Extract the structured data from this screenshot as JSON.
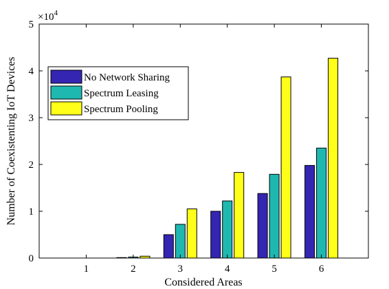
{
  "chart_data": {
    "type": "bar",
    "title": "",
    "xlabel": "Considered Areas",
    "ylabel": "Number of Coexistenting IoT Devices",
    "multiplier_label": "×10",
    "multiplier_exponent": "4",
    "categories": [
      "1",
      "2",
      "3",
      "4",
      "5",
      "6"
    ],
    "xlim": [
      0,
      7
    ],
    "ylim": [
      0,
      5
    ],
    "yticks": [
      0,
      1,
      2,
      3,
      4,
      5
    ],
    "grid": false,
    "legend_position": "upper-left",
    "series": [
      {
        "name": "No Network Sharing",
        "color": "#3425b3",
        "values": [
          0,
          0.01,
          0.5,
          1.0,
          1.38,
          1.98
        ]
      },
      {
        "name": "Spectrum Leasing",
        "color": "#1fb8b0",
        "values": [
          0,
          0.02,
          0.72,
          1.22,
          1.79,
          2.35
        ]
      },
      {
        "name": "Spectrum Pooling",
        "color": "#ffff1a",
        "values": [
          0,
          0.04,
          1.05,
          1.83,
          3.87,
          4.27
        ]
      }
    ]
  }
}
